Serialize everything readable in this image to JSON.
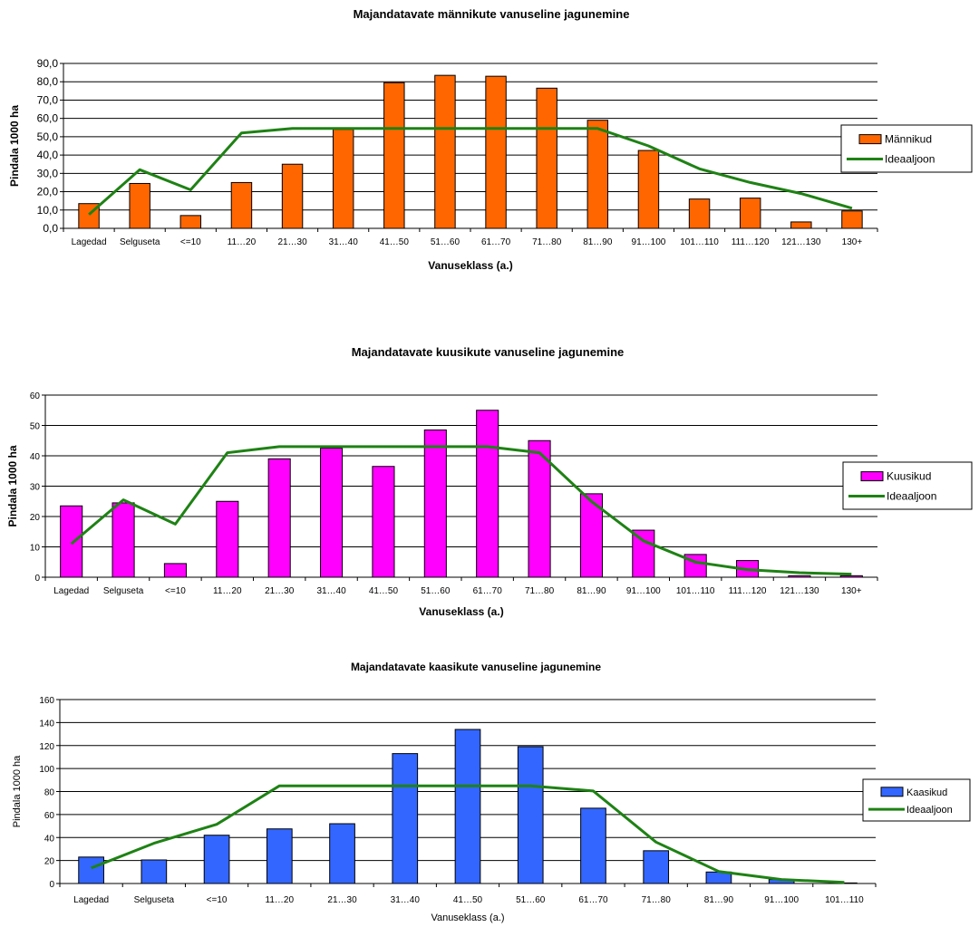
{
  "chart_data": [
    {
      "type": "bar",
      "title": "Majandatavate männikute vanuseline jagunemine",
      "xlabel": "Vanuseklass (a.)",
      "ylabel": "Pindala 1000 ha",
      "ylim": [
        0,
        90
      ],
      "ytick_step": 10,
      "ytick_labels": [
        "0,0",
        "10,0",
        "20,0",
        "30,0",
        "40,0",
        "50,0",
        "60,0",
        "70,0",
        "80,0",
        "90,0"
      ],
      "grid": true,
      "legend_position": "right",
      "categories": [
        "Lagedad",
        "Selguseta",
        "<=10",
        "11…20",
        "21…30",
        "31…40",
        "41…50",
        "51…60",
        "61…70",
        "71…80",
        "81…90",
        "91…100",
        "101…110",
        "111…120",
        "121…130",
        "130+"
      ],
      "series": [
        {
          "name": "Männikud",
          "kind": "bar",
          "color": "#ff6600",
          "values": [
            13.5,
            24.5,
            7.0,
            25.0,
            35.0,
            54.0,
            79.5,
            83.5,
            83.0,
            76.5,
            59.0,
            42.5,
            16.0,
            16.5,
            3.5,
            9.5
          ]
        },
        {
          "name": "Ideaaljoon",
          "kind": "line",
          "color": "#1e8214",
          "values": [
            7.5,
            32.0,
            21.0,
            52.0,
            54.5,
            54.5,
            54.5,
            54.5,
            54.5,
            54.5,
            54.5,
            45.0,
            32.5,
            25.0,
            19.0,
            11.0
          ]
        }
      ]
    },
    {
      "type": "bar",
      "title": "Majandatavate kuusikute vanuseline jagunemine",
      "xlabel": "Vanuseklass (a.)",
      "ylabel": "Pindala 1000 ha",
      "ylim": [
        0,
        60
      ],
      "ytick_step": 10,
      "ytick_labels": [
        "0",
        "10",
        "20",
        "30",
        "40",
        "50",
        "60"
      ],
      "grid": true,
      "legend_position": "right",
      "categories": [
        "Lagedad",
        "Selguseta",
        "<=10",
        "11…20",
        "21…30",
        "31…40",
        "41…50",
        "51…60",
        "61…70",
        "71…80",
        "81…90",
        "91…100",
        "101…110",
        "111…120",
        "121…130",
        "130+"
      ],
      "series": [
        {
          "name": "Kuusikud",
          "kind": "bar",
          "color": "#ff00ff",
          "values": [
            23.5,
            24.5,
            4.5,
            25.0,
            39.0,
            42.5,
            36.5,
            48.5,
            55.0,
            45.0,
            27.5,
            15.5,
            7.5,
            5.5,
            0.5,
            0.5
          ]
        },
        {
          "name": "Ideaaljoon",
          "kind": "line",
          "color": "#1e8214",
          "values": [
            11.0,
            25.5,
            17.5,
            41.0,
            43.0,
            43.0,
            43.0,
            43.0,
            43.0,
            41.0,
            25.0,
            12.0,
            5.0,
            2.5,
            1.5,
            1.0
          ]
        }
      ]
    },
    {
      "type": "bar",
      "title": "Majandatavate kaasikute vanuseline jagunemine",
      "xlabel": "Vanuseklass (a.)",
      "ylabel": "Pindala 1000 ha",
      "ylim": [
        0,
        160
      ],
      "ytick_step": 20,
      "ytick_labels": [
        "0",
        "20",
        "40",
        "60",
        "80",
        "100",
        "120",
        "140",
        "160"
      ],
      "grid": true,
      "legend_position": "right",
      "categories": [
        "Lagedad",
        "Selguseta",
        "<=10",
        "11…20",
        "21…30",
        "31…40",
        "41…50",
        "51…60",
        "61…70",
        "71…80",
        "81…90",
        "91…100",
        "101…110"
      ],
      "series": [
        {
          "name": "Kaasikud",
          "kind": "bar",
          "color": "#3366ff",
          "values": [
            23.0,
            20.5,
            42.0,
            47.5,
            52.0,
            113.0,
            134.0,
            119.0,
            65.5,
            28.5,
            10.0,
            3.5,
            0.5
          ]
        },
        {
          "name": "Ideaaljoon",
          "kind": "line",
          "color": "#1e8214",
          "values": [
            13.5,
            35.0,
            51.5,
            85.0,
            85.0,
            85.0,
            85.0,
            85.0,
            80.5,
            36.0,
            10.5,
            3.5,
            1.0
          ]
        }
      ]
    }
  ]
}
